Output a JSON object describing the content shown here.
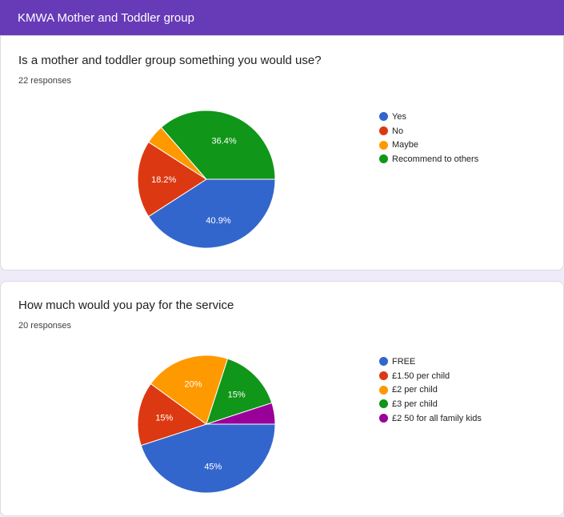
{
  "header": {
    "title": "KMWA Mother and Toddler group"
  },
  "questions": [
    {
      "title": "Is a mother and toddler group something you would use?",
      "responses": "22 responses",
      "chart_data": {
        "type": "pie",
        "labels": [
          "Yes",
          "No",
          "Maybe",
          "Recommend to others"
        ],
        "values": [
          40.9,
          18.2,
          4.5,
          36.4
        ],
        "slice_labels": [
          "40.9%",
          "18.2%",
          "",
          "36.4%"
        ],
        "colors": [
          "#3366cc",
          "#dc3912",
          "#ff9900",
          "#109618"
        ],
        "legend_position": "right"
      }
    },
    {
      "title": "How much would you pay for the service",
      "responses": "20 responses",
      "chart_data": {
        "type": "pie",
        "labels": [
          "FREE",
          "£1.50 per child",
          "£2 per child",
          "£3 per child",
          "£2 50 for all family kids"
        ],
        "values": [
          45,
          15,
          20,
          15,
          5
        ],
        "slice_labels": [
          "45%",
          "15%",
          "20%",
          "15%",
          ""
        ],
        "colors": [
          "#3366cc",
          "#dc3912",
          "#ff9900",
          "#109618",
          "#990099"
        ],
        "legend_position": "right"
      }
    }
  ]
}
